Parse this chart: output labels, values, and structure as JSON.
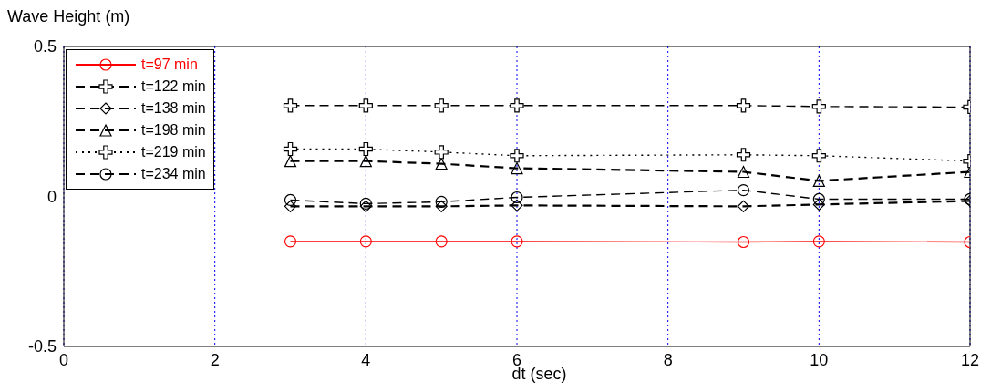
{
  "chart_data": {
    "type": "line",
    "ylabel": "Wave Height (m)",
    "xlabel": "dt (sec)",
    "x": [
      3,
      4,
      5,
      6,
      9,
      10,
      12
    ],
    "series": [
      {
        "name": "t=97 min",
        "color": "#ff0000",
        "marker": "circle",
        "line_style": "solid",
        "values": [
          -0.15,
          -0.15,
          -0.15,
          -0.15,
          -0.152,
          -0.15,
          -0.152
        ]
      },
      {
        "name": "t=122 min",
        "color": "#000000",
        "marker": "cross",
        "line_style": "dashed",
        "values": [
          0.303,
          0.303,
          0.303,
          0.303,
          0.303,
          0.3,
          0.298
        ]
      },
      {
        "name": "t=138 min",
        "color": "#000000",
        "marker": "diamond",
        "line_style": "dashed",
        "values": [
          -0.033,
          -0.033,
          -0.033,
          -0.03,
          -0.033,
          -0.027,
          -0.015
        ]
      },
      {
        "name": "t=198 min",
        "color": "#000000",
        "marker": "triangle",
        "line_style": "dashed",
        "values": [
          0.118,
          0.118,
          0.109,
          0.094,
          0.082,
          0.052,
          0.082
        ]
      },
      {
        "name": "t=219 min",
        "color": "#000000",
        "marker": "cross",
        "line_style": "dotted",
        "values": [
          0.158,
          0.158,
          0.148,
          0.136,
          0.139,
          0.136,
          0.118
        ]
      },
      {
        "name": "t=234 min",
        "color": "#000000",
        "marker": "circle",
        "line_style": "dashed",
        "values": [
          -0.012,
          -0.024,
          -0.018,
          -0.003,
          0.021,
          -0.009,
          -0.009
        ]
      }
    ],
    "xlim": [
      0,
      12
    ],
    "xticks": [
      0,
      2,
      4,
      6,
      8,
      10,
      12
    ],
    "ylim": [
      -0.5,
      0.5
    ],
    "yticks": [
      -0.5,
      0,
      0.5
    ],
    "grid": "x",
    "legend": "top left"
  }
}
